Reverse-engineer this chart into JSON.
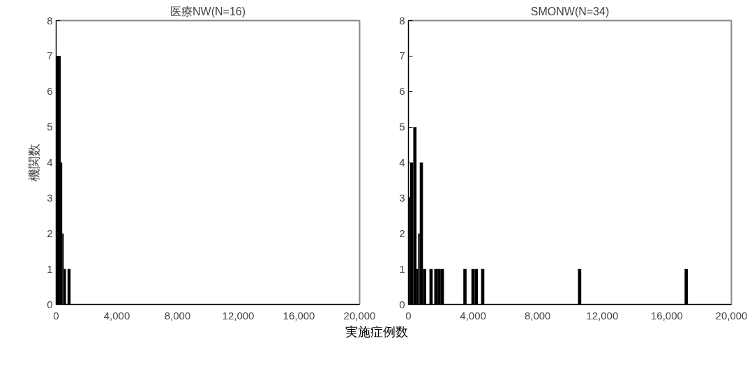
{
  "chart_data": [
    {
      "type": "histogram",
      "title": "医療NW(N=16)",
      "ylabel": "機関数",
      "color": "#000000",
      "bins": [
        0,
        300,
        400,
        500,
        650,
        750,
        950
      ],
      "values": [
        7,
        4,
        2,
        1,
        0,
        1
      ],
      "xlim": [
        0,
        20000
      ],
      "xticks": [
        0,
        {
          "value": 4000,
          "label": "4,000"
        },
        {
          "value": 8000,
          "label": "8,000"
        },
        {
          "value": 12000,
          "label": "12,000"
        },
        {
          "value": 16000,
          "label": "16,000"
        },
        {
          "value": 20000,
          "label": "20,000"
        }
      ],
      "ylim": [
        0,
        8
      ],
      "yticks": [
        0,
        1,
        2,
        3,
        4,
        5,
        6,
        7,
        8
      ],
      "grid": false
    },
    {
      "type": "histogram",
      "title": "SMONW(N=34)",
      "xlabel": "実施症例数",
      "color": "#000000",
      "bins": [
        0,
        100,
        300,
        500,
        600,
        700,
        900,
        1100,
        1300,
        1500,
        1600,
        1800,
        2000,
        2200,
        3400,
        3600,
        3900,
        4100,
        4300,
        4500,
        4700,
        10500,
        10700,
        17100,
        17300
      ],
      "values": [
        3,
        4,
        5,
        1,
        2,
        4,
        1,
        0,
        1,
        0,
        1,
        1,
        1,
        0,
        1,
        0,
        1,
        1,
        0,
        1,
        0,
        1,
        0,
        1
      ],
      "xlim": [
        0,
        20000
      ],
      "xticks": [
        0,
        {
          "value": 4000,
          "label": "4,000"
        },
        {
          "value": 8000,
          "label": "8,000"
        },
        {
          "value": 12000,
          "label": "12,000"
        },
        {
          "value": 16000,
          "label": "16,000"
        },
        {
          "value": 20000,
          "label": "20,000"
        }
      ],
      "ylim": [
        0,
        8
      ],
      "yticks": [
        0,
        1,
        2,
        3,
        4,
        5,
        6,
        7,
        8
      ],
      "grid": false
    }
  ]
}
